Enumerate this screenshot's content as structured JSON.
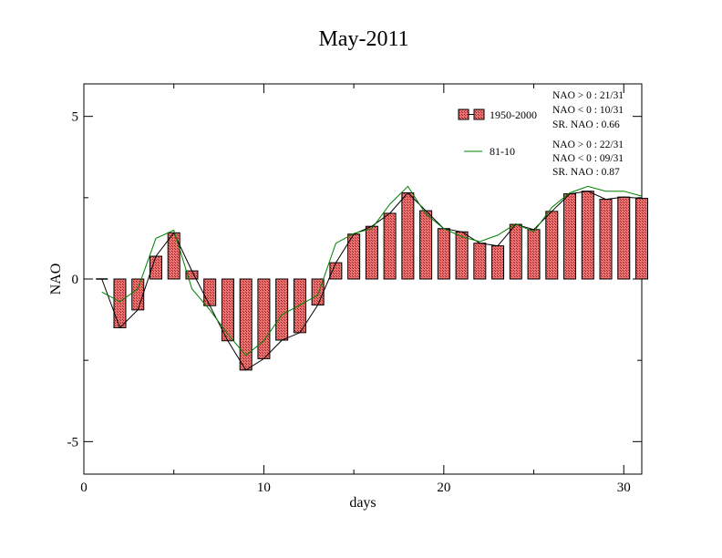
{
  "chart_data": {
    "type": "bar",
    "title": "May-2011",
    "xlabel": "days",
    "ylabel": "NAO",
    "xlim": [
      0,
      31
    ],
    "ylim": [
      -6,
      6
    ],
    "x_ticks": [
      0,
      10,
      20,
      30
    ],
    "y_ticks": [
      -5,
      0,
      5
    ],
    "x_tick_labels": [
      "0",
      "10",
      "20",
      "30"
    ],
    "y_tick_labels": [
      "-5",
      "0",
      "5"
    ],
    "grid": false,
    "legend_position": "top-right",
    "x": [
      1,
      2,
      3,
      4,
      5,
      6,
      7,
      8,
      9,
      10,
      11,
      12,
      13,
      14,
      15,
      16,
      17,
      18,
      19,
      20,
      21,
      22,
      23,
      24,
      25,
      26,
      27,
      28,
      29,
      30,
      31
    ],
    "series": [
      {
        "name": "1950-2000",
        "style": "bar",
        "color": "#f08080",
        "values": [
          0.0,
          -1.5,
          -0.95,
          0.7,
          1.42,
          0.25,
          -0.82,
          -1.9,
          -2.8,
          -2.45,
          -1.88,
          -1.65,
          -0.8,
          0.5,
          1.38,
          1.62,
          2.02,
          2.65,
          2.1,
          1.55,
          1.45,
          1.1,
          1.02,
          1.68,
          1.52,
          2.08,
          2.62,
          2.7,
          2.45,
          2.52,
          2.48
        ]
      },
      {
        "name": "",
        "style": "line",
        "color": "#000000",
        "values": [
          0.0,
          -1.5,
          -0.95,
          0.7,
          1.42,
          0.25,
          -0.82,
          -1.9,
          -2.8,
          -2.45,
          -1.88,
          -1.65,
          -0.8,
          0.5,
          1.38,
          1.62,
          2.02,
          2.65,
          2.1,
          1.55,
          1.45,
          1.1,
          1.02,
          1.68,
          1.52,
          2.08,
          2.62,
          2.7,
          2.45,
          2.52,
          2.48
        ]
      },
      {
        "name": "81-10",
        "style": "line",
        "color": "#008000",
        "values": [
          -0.4,
          -0.7,
          -0.3,
          1.25,
          1.5,
          -0.3,
          -0.95,
          -1.7,
          -2.35,
          -1.9,
          -1.1,
          -0.8,
          -0.5,
          1.1,
          1.4,
          1.55,
          2.3,
          2.85,
          2.0,
          1.55,
          1.3,
          1.15,
          1.35,
          1.7,
          1.45,
          2.2,
          2.65,
          2.85,
          2.7,
          2.7,
          2.55
        ]
      }
    ],
    "annotations": [
      {
        "lines": [
          "NAO > 0 : 21/31",
          "NAO < 0 : 10/31",
          "SR. NAO :  0.66"
        ]
      },
      {
        "lines": [
          "NAO > 0 : 22/31",
          "NAO < 0 : 09/31",
          "SR. NAO :  0.87"
        ]
      }
    ]
  }
}
